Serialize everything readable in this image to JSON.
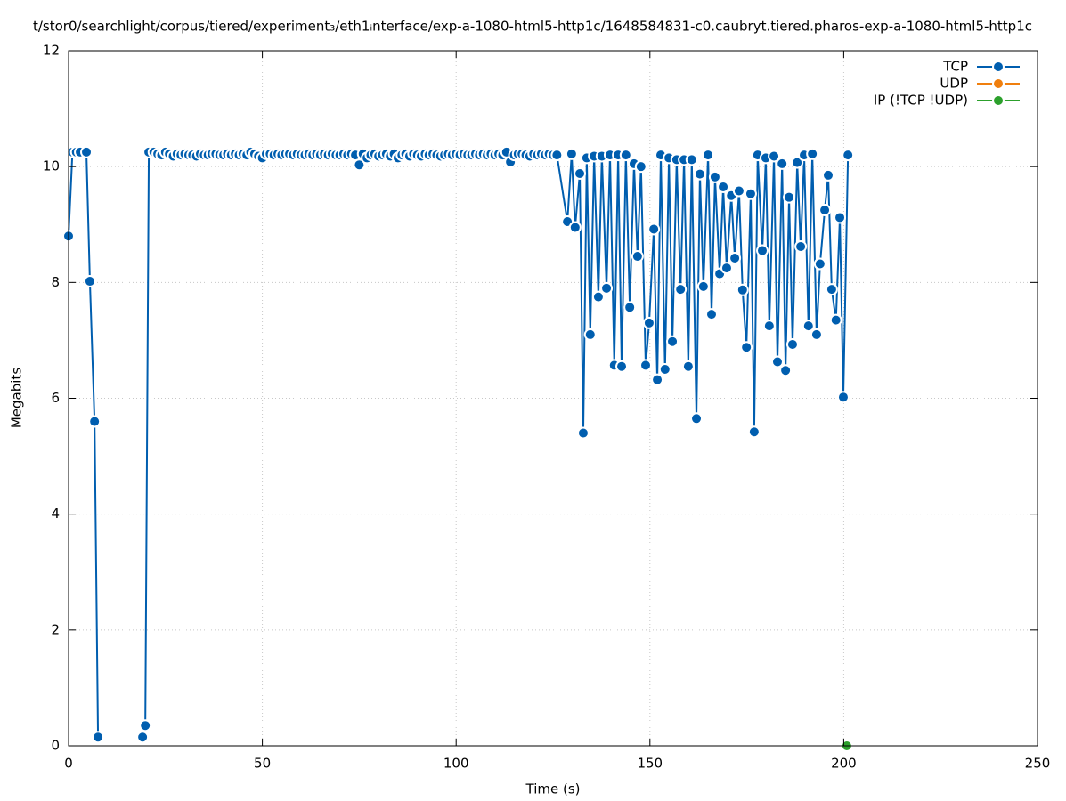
{
  "chart_data": {
    "type": "line",
    "title": "t/stor0/searchlight/corpus/tiered/experiment₃/eth1ᵢnterface/exp-a-1080-html5-http1c/1648584831-c0.caubryt.tiered.pharos-exp-a-1080-html5-http1c",
    "x_label": "Time (s)",
    "y_label": "Megabits",
    "xlim": [
      0,
      250
    ],
    "xticks": [
      0,
      50,
      100,
      150,
      200,
      250
    ],
    "ylim": [
      0,
      12
    ],
    "yticks": [
      0,
      2,
      4,
      6,
      8,
      10,
      12
    ],
    "grid": true,
    "legend": "upper right",
    "series": [
      {
        "name": "TCP",
        "color": "#005eaf",
        "x": [
          0,
          1,
          2,
          3,
          4.6,
          5.5,
          6.7,
          7.6,
          13,
          19.1,
          19.8,
          20.7,
          22,
          23,
          24,
          25,
          26,
          27,
          28,
          29,
          30,
          31,
          32,
          33,
          34,
          35,
          36,
          37,
          38,
          39,
          40,
          41,
          42,
          43,
          44,
          45,
          46,
          47,
          48,
          49,
          50,
          51,
          52,
          53,
          54,
          55,
          56,
          57,
          58,
          59,
          60,
          61,
          62,
          63,
          64,
          65,
          66,
          67,
          68,
          69,
          70,
          71,
          72,
          73,
          74,
          75,
          76,
          77,
          78,
          79,
          80,
          81,
          82,
          83,
          84,
          85,
          86,
          87,
          88,
          89,
          90,
          91,
          92,
          93,
          94,
          95,
          96,
          97,
          98,
          99,
          100,
          101,
          102,
          103,
          104,
          105,
          106,
          107,
          108,
          109,
          110,
          111,
          112,
          113,
          114,
          115,
          116,
          117,
          118,
          119,
          120,
          121,
          122,
          123,
          124,
          125,
          126,
          128.7,
          129.8,
          130.7,
          131.9,
          132.8,
          133.7,
          134.6,
          135.6,
          136.7,
          137.6,
          138.8,
          139.7,
          140.8,
          141.8,
          142.7,
          143.8,
          144.8,
          145.9,
          146.8,
          147.7,
          148.9,
          149.8,
          151,
          151.9,
          152.8,
          153.9,
          154.9,
          155.8,
          156.9,
          157.9,
          158.8,
          159.9,
          160.8,
          162,
          162.9,
          163.8,
          165,
          165.9,
          166.8,
          168,
          168.9,
          169.8,
          171,
          171.9,
          173,
          173.9,
          174.9,
          176,
          176.9,
          177.8,
          179,
          179.9,
          180.8,
          182,
          182.9,
          184.1,
          185,
          185.9,
          186.8,
          188,
          188.9,
          189.8,
          190.9,
          191.9,
          193,
          193.9,
          195.1,
          196,
          196.9,
          198,
          199,
          199.9,
          201.1
        ],
        "values": [
          8.8,
          10.25,
          10.25,
          10.25,
          10.25,
          8.02,
          5.6,
          0.15,
          null,
          0.15,
          0.35,
          10.25,
          10.25,
          10.22,
          10.2,
          10.25,
          10.22,
          10.18,
          10.22,
          10.2,
          10.22,
          10.2,
          10.2,
          10.18,
          10.22,
          10.2,
          10.2,
          10.22,
          10.22,
          10.2,
          10.2,
          10.22,
          10.2,
          10.22,
          10.2,
          10.22,
          10.2,
          10.25,
          10.22,
          10.18,
          10.15,
          10.22,
          10.22,
          10.2,
          10.22,
          10.2,
          10.22,
          10.22,
          10.2,
          10.22,
          10.2,
          10.2,
          10.22,
          10.2,
          10.22,
          10.2,
          10.22,
          10.2,
          10.22,
          10.2,
          10.2,
          10.22,
          10.2,
          10.22,
          10.2,
          10.03,
          10.22,
          10.15,
          10.2,
          10.22,
          10.18,
          10.2,
          10.22,
          10.18,
          10.22,
          10.15,
          10.2,
          10.22,
          10.18,
          10.22,
          10.2,
          10.18,
          10.22,
          10.2,
          10.22,
          10.2,
          10.18,
          10.2,
          10.22,
          10.2,
          10.22,
          10.2,
          10.22,
          10.2,
          10.2,
          10.22,
          10.2,
          10.22,
          10.2,
          10.22,
          10.2,
          10.22,
          10.2,
          10.25,
          10.08,
          10.2,
          10.22,
          10.22,
          10.2,
          10.18,
          10.22,
          10.2,
          10.22,
          10.2,
          10.22,
          10.2,
          10.2,
          9.05,
          10.22,
          8.95,
          9.88,
          5.4,
          10.15,
          7.1,
          10.18,
          7.75,
          10.18,
          7.9,
          10.2,
          6.57,
          10.2,
          6.55,
          10.2,
          7.57,
          10.05,
          8.45,
          10.0,
          6.57,
          7.3,
          8.92,
          6.32,
          10.2,
          6.5,
          10.15,
          6.98,
          10.12,
          7.88,
          10.12,
          6.55,
          10.12,
          5.65,
          9.87,
          7.93,
          10.2,
          7.45,
          9.82,
          8.15,
          9.65,
          8.25,
          9.5,
          8.42,
          9.58,
          7.87,
          6.88,
          9.53,
          5.42,
          10.2,
          8.55,
          10.15,
          7.25,
          10.18,
          6.63,
          10.05,
          6.48,
          9.47,
          6.93,
          10.07,
          8.62,
          10.2,
          7.25,
          10.22,
          7.1,
          8.32,
          9.25,
          9.85,
          7.88,
          7.35,
          9.12,
          6.02,
          10.2
        ]
      },
      {
        "name": "UDP",
        "color": "#f07f0e",
        "x": [],
        "values": []
      },
      {
        "name": "IP (!TCP  !UDP)",
        "color": "#2ca02c",
        "x": [
          200.8
        ],
        "values": [
          0
        ]
      }
    ]
  }
}
